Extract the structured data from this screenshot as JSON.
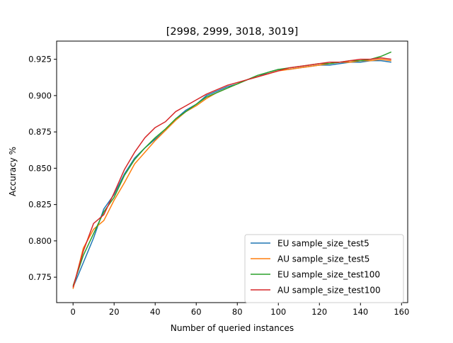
{
  "chart_data": {
    "type": "line",
    "title": "[2998, 2999, 3018, 3019]",
    "xlabel": "Number of queried instances",
    "ylabel": "Accuracy %",
    "xlim": [
      -8,
      163
    ],
    "ylim": [
      0.7575,
      0.9375
    ],
    "x_ticks": [
      0,
      20,
      40,
      60,
      80,
      100,
      120,
      140,
      160
    ],
    "x_tick_labels": [
      "0",
      "20",
      "40",
      "60",
      "80",
      "100",
      "120",
      "140",
      "160"
    ],
    "y_ticks": [
      0.775,
      0.8,
      0.825,
      0.85,
      0.875,
      0.9,
      0.925
    ],
    "y_tick_labels": [
      "0.775",
      "0.800",
      "0.825",
      "0.850",
      "0.875",
      "0.900",
      "0.925"
    ],
    "grid": false,
    "legend_position": "lower-right",
    "x": [
      0,
      5,
      10,
      15,
      20,
      25,
      30,
      35,
      40,
      45,
      50,
      55,
      60,
      65,
      70,
      75,
      80,
      85,
      90,
      95,
      100,
      105,
      110,
      115,
      120,
      125,
      130,
      135,
      140,
      145,
      150,
      155
    ],
    "series": [
      {
        "name": " EU sample_size_test5",
        "color": "#1f77b4",
        "values": [
          0.768,
          0.785,
          0.802,
          0.822,
          0.832,
          0.846,
          0.857,
          0.864,
          0.87,
          0.876,
          0.884,
          0.89,
          0.894,
          0.9,
          0.903,
          0.906,
          0.908,
          0.911,
          0.913,
          0.916,
          0.918,
          0.918,
          0.919,
          0.92,
          0.921,
          0.921,
          0.922,
          0.923,
          0.923,
          0.924,
          0.924,
          0.923
        ]
      },
      {
        "name": "AU sample_size_test5",
        "color": "#ff7f0e",
        "values": [
          0.767,
          0.795,
          0.808,
          0.814,
          0.828,
          0.84,
          0.853,
          0.861,
          0.869,
          0.876,
          0.883,
          0.889,
          0.893,
          0.898,
          0.902,
          0.905,
          0.908,
          0.911,
          0.913,
          0.915,
          0.917,
          0.918,
          0.919,
          0.92,
          0.921,
          0.922,
          0.923,
          0.923,
          0.924,
          0.924,
          0.925,
          0.924
        ]
      },
      {
        "name": "EU sample_size_test100",
        "color": "#2ca02c",
        "values": [
          0.769,
          0.79,
          0.805,
          0.82,
          0.83,
          0.845,
          0.856,
          0.864,
          0.871,
          0.877,
          0.884,
          0.889,
          0.894,
          0.899,
          0.902,
          0.905,
          0.908,
          0.911,
          0.914,
          0.916,
          0.918,
          0.919,
          0.92,
          0.921,
          0.922,
          0.922,
          0.923,
          0.924,
          0.924,
          0.925,
          0.927,
          0.93
        ]
      },
      {
        "name": "AU sample_size_test100",
        "color": "#d62728",
        "values": [
          0.768,
          0.793,
          0.812,
          0.818,
          0.833,
          0.849,
          0.861,
          0.871,
          0.878,
          0.882,
          0.889,
          0.893,
          0.897,
          0.901,
          0.904,
          0.907,
          0.909,
          0.911,
          0.913,
          0.915,
          0.917,
          0.919,
          0.92,
          0.921,
          0.922,
          0.923,
          0.923,
          0.924,
          0.925,
          0.925,
          0.926,
          0.925
        ]
      }
    ]
  }
}
